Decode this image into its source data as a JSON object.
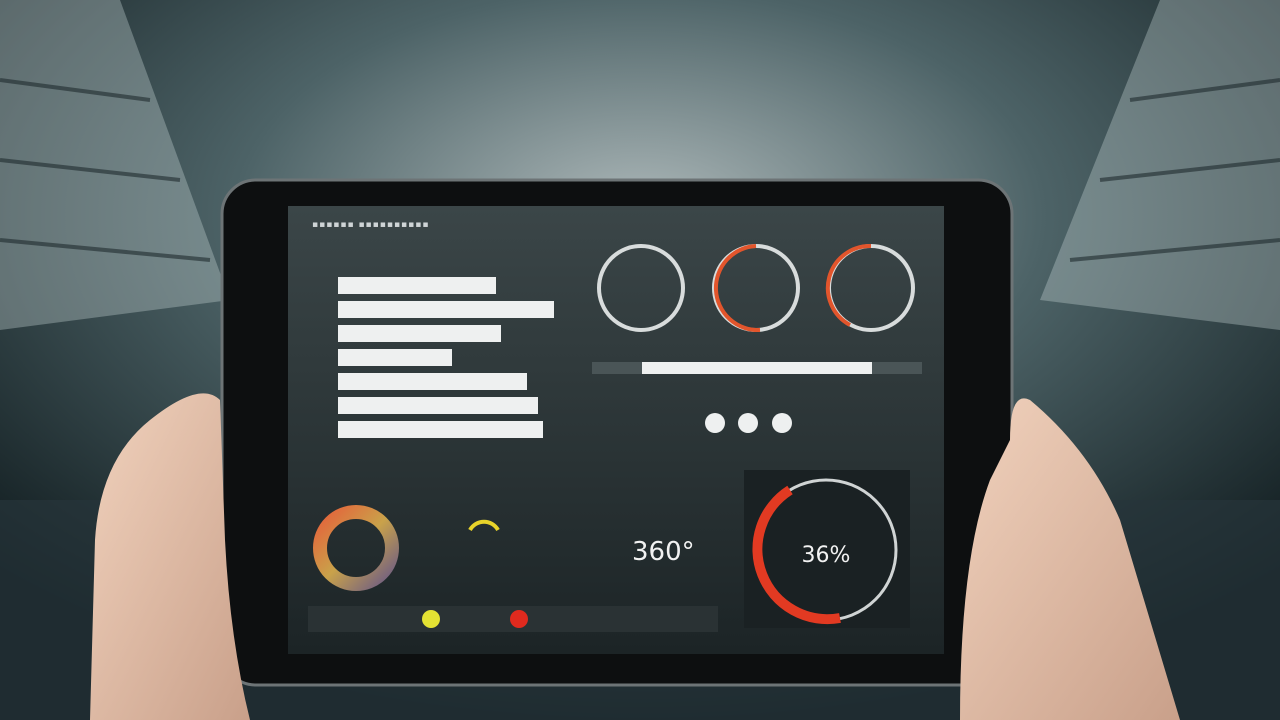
{
  "screen": {
    "center_value": "360°",
    "ring_value": "36%"
  }
}
